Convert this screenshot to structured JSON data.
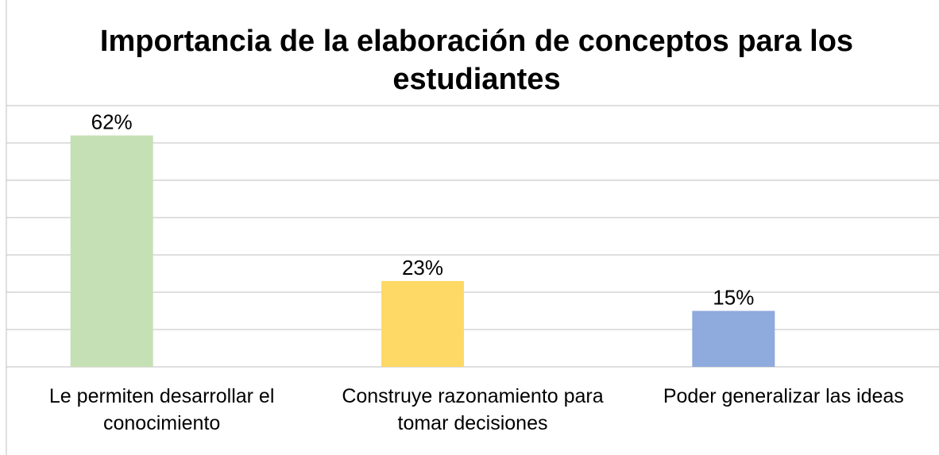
{
  "chart_data": {
    "type": "bar",
    "title": "Importancia de la elaboración de conceptos para los estudiantes",
    "categories": [
      "Le permiten desarrollar el conocimiento",
      "Construye razonamiento para tomar decisiones",
      "Poder generalizar las ideas"
    ],
    "values": [
      62,
      23,
      15
    ],
    "value_labels": [
      "62%",
      "23%",
      "15%"
    ],
    "colors": [
      "#c5e0b4",
      "#ffd966",
      "#8faadc"
    ],
    "ylim": [
      0,
      70
    ],
    "yticks": [
      0,
      10,
      20,
      30,
      40,
      50,
      60,
      70
    ],
    "grid": true
  }
}
